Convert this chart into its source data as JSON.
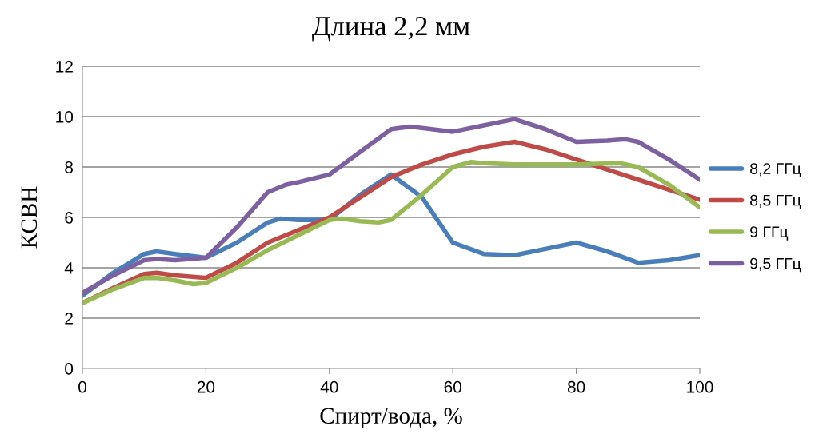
{
  "chart_data": {
    "type": "line",
    "title": "Длина 2,2 мм",
    "xlabel": "Спирт/вода, %",
    "ylabel": "КСВН",
    "series": [
      {
        "name": "8,2 ГГц",
        "color": "#4a7ebb",
        "x": [
          0,
          5,
          10,
          12,
          15,
          20,
          25,
          30,
          32,
          35,
          40,
          45,
          50,
          55,
          60,
          65,
          70,
          75,
          80,
          85,
          90,
          95,
          100
        ],
        "values": [
          2.9,
          3.8,
          4.55,
          4.65,
          4.55,
          4.4,
          5.0,
          5.8,
          5.95,
          5.9,
          5.9,
          6.9,
          7.7,
          6.8,
          5.0,
          4.55,
          4.5,
          4.75,
          5.0,
          4.65,
          4.2,
          4.3,
          4.5
        ]
      },
      {
        "name": "8,5 ГГц",
        "color": "#be4b48",
        "x": [
          0,
          5,
          10,
          12,
          15,
          20,
          25,
          30,
          35,
          40,
          45,
          50,
          55,
          60,
          65,
          70,
          75,
          80,
          85,
          90,
          95,
          100
        ],
        "values": [
          2.6,
          3.2,
          3.75,
          3.8,
          3.7,
          3.6,
          4.2,
          5.0,
          5.5,
          6.0,
          6.8,
          7.6,
          8.1,
          8.5,
          8.8,
          9.0,
          8.7,
          8.3,
          7.9,
          7.5,
          7.1,
          6.7
        ]
      },
      {
        "name": "9 ГГц",
        "color": "#98b954",
        "x": [
          0,
          5,
          10,
          12,
          15,
          18,
          20,
          25,
          30,
          35,
          40,
          42,
          45,
          48,
          50,
          55,
          60,
          63,
          65,
          70,
          80,
          87,
          90,
          95,
          100
        ],
        "values": [
          2.6,
          3.15,
          3.6,
          3.6,
          3.5,
          3.35,
          3.4,
          4.0,
          4.7,
          5.3,
          5.9,
          5.95,
          5.85,
          5.8,
          5.9,
          6.9,
          8.0,
          8.2,
          8.15,
          8.1,
          8.1,
          8.15,
          8.0,
          7.3,
          6.4
        ]
      },
      {
        "name": "9,5 ГГц",
        "color": "#7d60a0",
        "x": [
          0,
          5,
          10,
          12,
          15,
          20,
          25,
          30,
          33,
          35,
          40,
          45,
          50,
          53,
          55,
          60,
          65,
          70,
          75,
          80,
          85,
          88,
          90,
          95,
          100
        ],
        "values": [
          3.0,
          3.7,
          4.3,
          4.35,
          4.3,
          4.4,
          5.6,
          7.0,
          7.3,
          7.4,
          7.7,
          8.6,
          9.5,
          9.6,
          9.55,
          9.4,
          9.65,
          9.9,
          9.5,
          9.0,
          9.05,
          9.1,
          9.0,
          8.3,
          7.5
        ]
      }
    ],
    "xlim": [
      0,
      100
    ],
    "xticks": [
      0,
      20,
      40,
      60,
      80,
      100
    ],
    "ylim": [
      0,
      12
    ],
    "yticks": [
      0,
      2,
      4,
      6,
      8,
      10,
      12
    ],
    "grid": "y",
    "legend": "right",
    "marker": "none",
    "line_style": "solid"
  }
}
